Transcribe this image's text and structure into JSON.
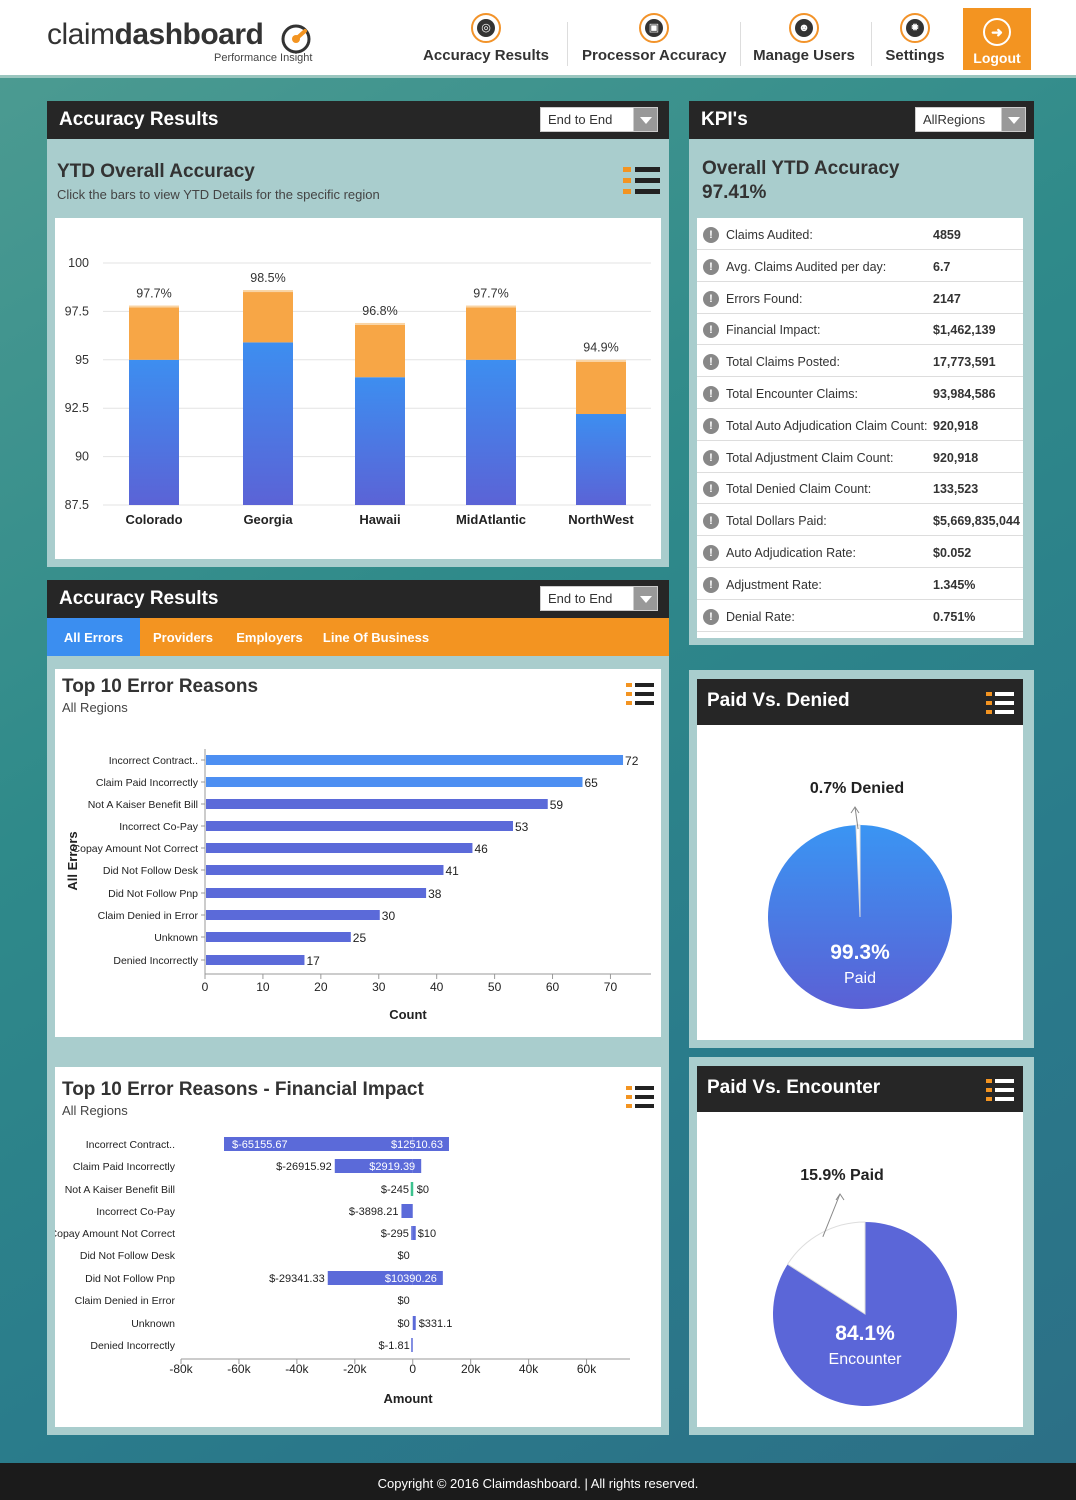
{
  "brand": {
    "name_light": "claim",
    "name_bold": "dashboard",
    "tagline": "Performance Insight"
  },
  "nav": {
    "items": [
      {
        "label": "Accuracy Results",
        "icon": "target-icon"
      },
      {
        "label": "Processor Accuracy",
        "icon": "chip-icon"
      },
      {
        "label": "Manage Users",
        "icon": "users-icon"
      },
      {
        "label": "Settings",
        "icon": "gear-icon"
      }
    ],
    "logout": "Logout"
  },
  "accuracy_panel": {
    "title": "Accuracy Results",
    "dropdown": "End to End",
    "card_title": "YTD Overall Accuracy",
    "card_subtitle": "Click the bars to view YTD Details for the specific region"
  },
  "kpi_panel": {
    "title": "KPI's",
    "dropdown": "AllRegions",
    "overall_label": "Overall YTD Accuracy",
    "overall_value": "97.41%",
    "rows": [
      {
        "label": "Claims Audited:",
        "value": "4859"
      },
      {
        "label": "Avg. Claims Audited per day:",
        "value": "6.7"
      },
      {
        "label": "Errors Found:",
        "value": "2147"
      },
      {
        "label": "Financial Impact:",
        "value": "$1,462,139"
      },
      {
        "label": "Total Claims Posted:",
        "value": "17,773,591"
      },
      {
        "label": "Total Encounter Claims:",
        "value": "93,984,586"
      },
      {
        "label": "Total Auto Adjudication Claim Count:",
        "value": "920,918"
      },
      {
        "label": "Total Adjustment Claim Count:",
        "value": "920,918"
      },
      {
        "label": "Total Denied Claim Count:",
        "value": "133,523"
      },
      {
        "label": "Total Dollars Paid:",
        "value": "$5,669,835,044"
      },
      {
        "label": "Auto Adjudication Rate:",
        "value": "$0.052"
      },
      {
        "label": "Adjustment Rate:",
        "value": "1.345%"
      },
      {
        "label": "Denial Rate:",
        "value": "0.751%"
      }
    ]
  },
  "errors_panel": {
    "title": "Accuracy Results",
    "dropdown": "End to End",
    "tabs": [
      "All Errors",
      "Providers",
      "Employers",
      "Line Of Business"
    ],
    "top10_title": "Top 10 Error Reasons",
    "top10_subtitle": "All Regions",
    "fin_title": "Top 10 Error Reasons - Financial Impact",
    "fin_subtitle": "All Regions"
  },
  "paid_denied": {
    "title": "Paid Vs. Denied"
  },
  "paid_encounter": {
    "title": "Paid Vs. Encounter"
  },
  "footer": "Copyright © 2016 Claimdashboard.  |  All rights reserved.",
  "chart_data": [
    {
      "type": "bar",
      "title": "YTD Overall Accuracy",
      "categories": [
        "Colorado",
        "Georgia",
        "Hawaii",
        "MidAtlantic",
        "NorthWest"
      ],
      "series": [
        {
          "name": "base",
          "values": [
            95,
            95.9,
            94.1,
            95,
            92.2
          ]
        },
        {
          "name": "accuracy",
          "values": [
            97.7,
            98.5,
            96.8,
            97.7,
            94.9
          ]
        }
      ],
      "data_labels": [
        "97.7%",
        "98.5%",
        "96.8%",
        "97.7%",
        "94.9%"
      ],
      "yticks": [
        "100",
        "97.5",
        "95",
        "92.5",
        "90",
        "87.5"
      ],
      "ylim": [
        87.5,
        100
      ]
    },
    {
      "type": "bar",
      "orientation": "horizontal",
      "title": "Top 10 Error Reasons",
      "xlabel": "Count",
      "ylabel": "All Errors",
      "categories": [
        "Incorrect Contract..",
        "Claim Paid Incorrectly",
        "Not A Kaiser Benefit Bill",
        "Incorrect Co-Pay",
        "Copay Amount Not Correct",
        "Did Not Follow Desk",
        "Did Not Follow Pnp",
        "Claim Denied in Error",
        "Unknown",
        "Denied Incorrectly"
      ],
      "values": [
        72,
        65,
        59,
        53,
        46,
        41,
        38,
        30,
        25,
        17
      ],
      "xticks": [
        "0",
        "10",
        "20",
        "30",
        "40",
        "50",
        "60",
        "70"
      ],
      "xlim": [
        0,
        77
      ]
    },
    {
      "type": "bar",
      "orientation": "horizontal",
      "title": "Top 10 Error Reasons - Financial Impact",
      "xlabel": "Amount",
      "categories": [
        "Incorrect Contract..",
        "Claim Paid Incorrectly",
        "Not A Kaiser Benefit Bill",
        "Incorrect Co-Pay",
        "Copay Amount Not Correct",
        "Did Not Follow Desk",
        "Did Not Follow Pnp",
        "Claim Denied in Error",
        "Unknown",
        "Denied Incorrectly"
      ],
      "negative": [
        -65155.67,
        -26915.92,
        -245,
        -3898.21,
        -295,
        0,
        -29341.33,
        0,
        0,
        -1.81
      ],
      "positive": [
        12510.63,
        2919.39,
        0,
        0,
        10,
        0,
        10390.26,
        0,
        331.1,
        0
      ],
      "neg_labels": [
        "$-65155.67",
        "$-26915.92",
        "$-245",
        "$-3898.21",
        "$-295",
        "$0",
        "$-29341.33",
        "$0",
        "$0",
        "$-1.81"
      ],
      "pos_labels": [
        "$12510.63",
        "$2919.39",
        "$0",
        "",
        "$10",
        "",
        "$10390.26",
        "",
        "$331.1",
        ""
      ],
      "xticks": [
        "-80k",
        "-60k",
        "-40k",
        "-20k",
        "0",
        "20k",
        "40k",
        "60k"
      ],
      "xlim": [
        -80000,
        75000
      ]
    },
    {
      "type": "pie",
      "title": "Paid Vs. Denied",
      "slices": [
        {
          "name": "Paid",
          "value": 99.3
        },
        {
          "name": "Denied",
          "value": 0.7
        }
      ],
      "labels": {
        "main_pct": "99.3%",
        "main_name": "Paid",
        "callout": "0.7% Denied"
      }
    },
    {
      "type": "pie",
      "title": "Paid Vs. Encounter",
      "slices": [
        {
          "name": "Encounter",
          "value": 84.1
        },
        {
          "name": "Paid",
          "value": 15.9
        }
      ],
      "labels": {
        "main_pct": "84.1%",
        "main_name": "Encounter",
        "callout": "15.9% Paid"
      }
    }
  ]
}
